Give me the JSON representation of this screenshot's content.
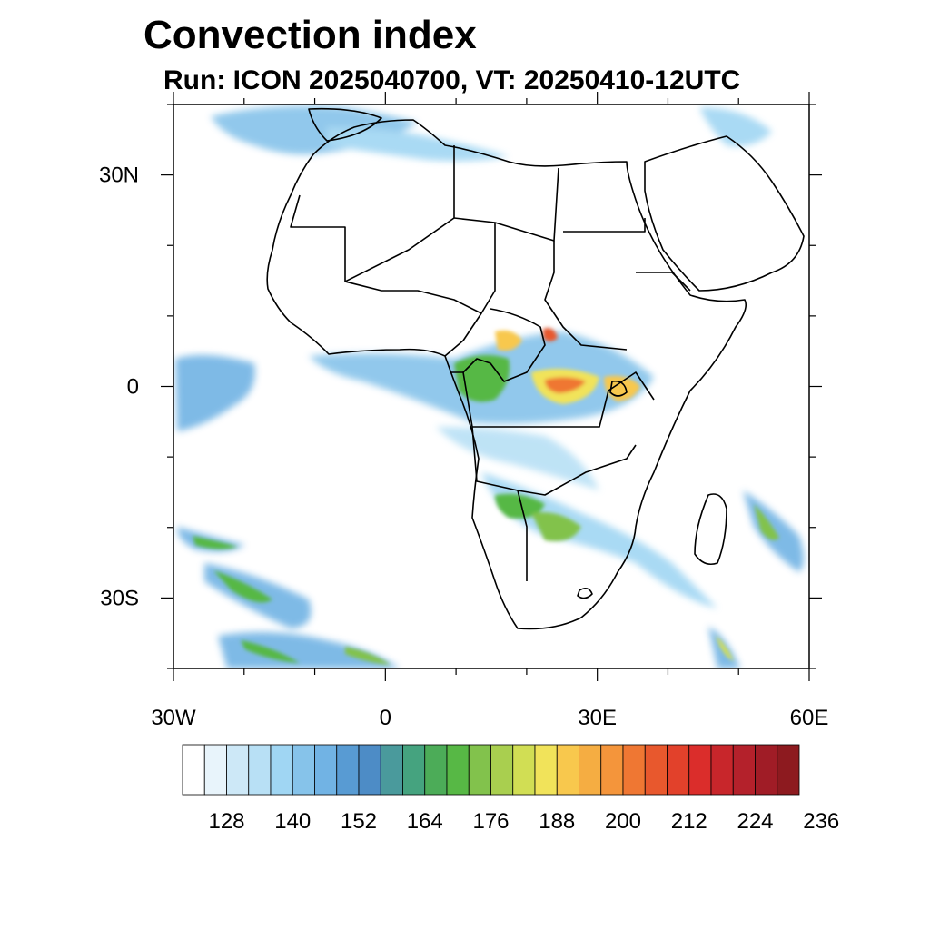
{
  "title": "Convection index",
  "subtitle": "Run: ICON 2025040700,  VT: 20250410-12UTC",
  "map": {
    "projection": "cylindrical equidistant",
    "lon_range": [
      -30,
      60
    ],
    "lat_range": [
      -40,
      40
    ],
    "lat_ticks": [
      {
        "value": 30,
        "label": "30N"
      },
      {
        "value": 0,
        "label": "0"
      },
      {
        "value": -30,
        "label": "30S"
      }
    ],
    "lon_ticks": [
      {
        "value": -30,
        "label": "30W"
      },
      {
        "value": 0,
        "label": "0"
      },
      {
        "value": 30,
        "label": "30E"
      },
      {
        "value": 60,
        "label": "60E"
      }
    ]
  },
  "colorbar": {
    "tick_labels": [
      "128",
      "140",
      "152",
      "164",
      "176",
      "188",
      "200",
      "212",
      "224",
      "236"
    ],
    "colors": [
      "#ffffff",
      "#e8f4fb",
      "#cde8f7",
      "#b8e0f5",
      "#a0d6f3",
      "#86c3ea",
      "#71b3e4",
      "#589bd3",
      "#4d8cc6",
      "#4a9a9c",
      "#45a37f",
      "#4cac58",
      "#57b845",
      "#82c24c",
      "#a9cf4f",
      "#d1de54",
      "#f1e35a",
      "#f8c84d",
      "#f5ad42",
      "#f4953b",
      "#ef7733",
      "#e8582d",
      "#e2412b",
      "#db2d2b",
      "#c8262b",
      "#b4212b",
      "#a01c26",
      "#8d1a1f"
    ]
  }
}
